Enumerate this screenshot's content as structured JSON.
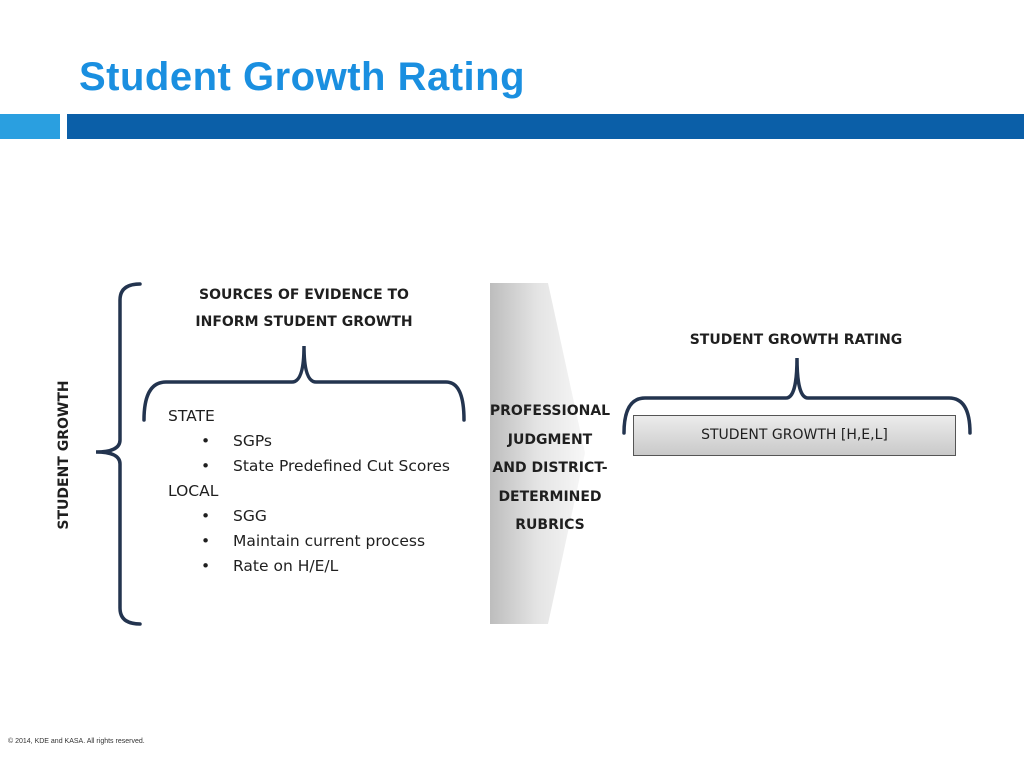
{
  "slide": {
    "title": "Student Growth Rating",
    "footer": "© 2014, KDE and KASA. All rights reserved."
  },
  "diagram": {
    "side_label": "STUDENT GROWTH",
    "sources_heading_line1": "SOURCES OF EVIDENCE TO",
    "sources_heading_line2": "INFORM STUDENT GROWTH",
    "groups": [
      {
        "label": "STATE",
        "items": [
          "SGPs",
          "State Predefined Cut Scores"
        ]
      },
      {
        "label": "LOCAL",
        "items": [
          "SGG",
          "Maintain current process",
          "Rate on H/E/L"
        ]
      }
    ],
    "arrow_text_lines": [
      "PROFESSIONAL",
      "JUDGMENT",
      "AND DISTRICT-",
      "DETERMINED",
      "RUBRICS"
    ],
    "rating_heading": "STUDENT GROWTH RATING",
    "rating_box": "STUDENT GROWTH [H,E,L]",
    "bullet_char": "•"
  },
  "colors": {
    "title": "#1a8fe0",
    "bar_light": "#2a9fe0",
    "bar_dark": "#0b5fa8",
    "bracket": "#23344f"
  }
}
